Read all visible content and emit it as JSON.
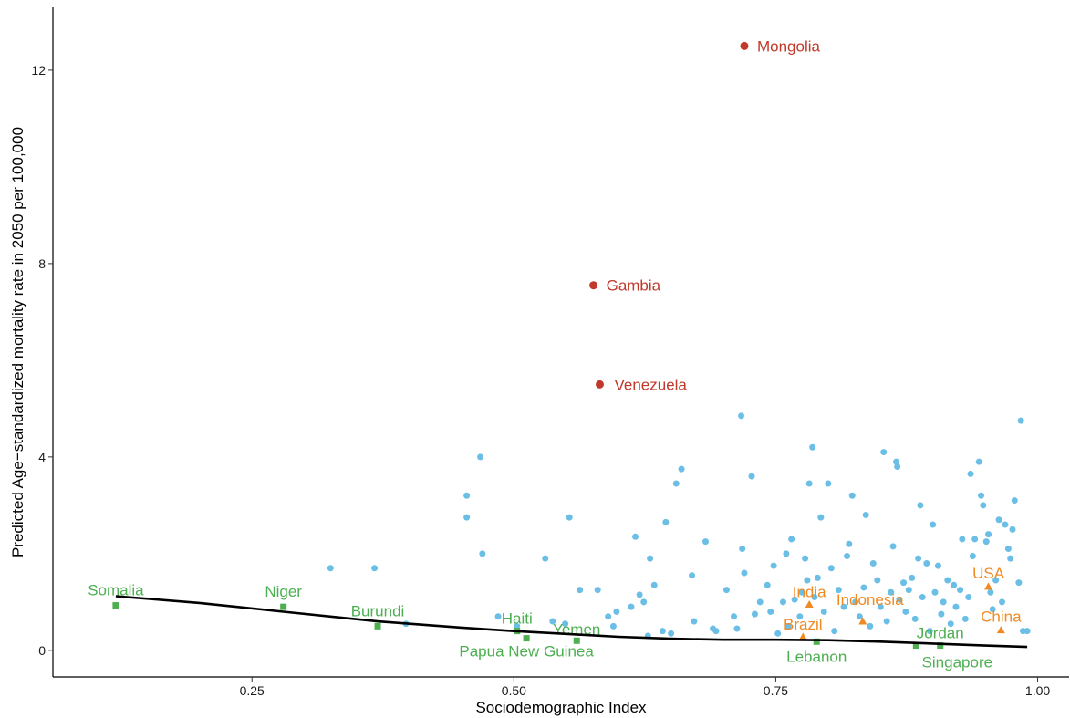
{
  "chart_data": {
    "type": "scatter",
    "title": "",
    "xlabel": "Sociodemographic Index",
    "ylabel": "Predicted Age−standardized mortality rate in 2050 per 100,000",
    "xlim": [
      0.06,
      1.03
    ],
    "ylim": [
      -0.55,
      13.3
    ],
    "x_ticks": [
      0.25,
      0.5,
      0.75,
      1.0
    ],
    "x_tick_labels": [
      "0.25",
      "0.50",
      "0.75",
      "1.00"
    ],
    "y_ticks": [
      0,
      4,
      8,
      12
    ],
    "y_tick_labels": [
      "0",
      "4",
      "8",
      "12"
    ],
    "grid": false,
    "legend": "none",
    "colors": {
      "other": "#6bbfe6",
      "high": "#c0392b",
      "low": "#4caf50",
      "major": "#f08a24",
      "trend": "#000000"
    },
    "series": [
      {
        "group": "other",
        "marker": "circle",
        "points": [
          [
            0.325,
            1.7
          ],
          [
            0.367,
            1.7
          ],
          [
            0.397,
            0.55
          ],
          [
            0.455,
            3.2
          ],
          [
            0.455,
            2.75
          ],
          [
            0.468,
            4.0
          ],
          [
            0.47,
            2.0
          ],
          [
            0.485,
            0.7
          ],
          [
            0.503,
            0.5
          ],
          [
            0.53,
            1.9
          ],
          [
            0.537,
            0.6
          ],
          [
            0.549,
            0.55
          ],
          [
            0.553,
            2.75
          ],
          [
            0.563,
            1.25
          ],
          [
            0.58,
            1.25
          ],
          [
            0.59,
            0.7
          ],
          [
            0.595,
            0.5
          ],
          [
            0.598,
            0.8
          ],
          [
            0.612,
            0.9
          ],
          [
            0.616,
            2.35
          ],
          [
            0.62,
            1.15
          ],
          [
            0.624,
            1.0
          ],
          [
            0.628,
            0.3
          ],
          [
            0.63,
            1.9
          ],
          [
            0.634,
            1.35
          ],
          [
            0.642,
            0.4
          ],
          [
            0.645,
            2.65
          ],
          [
            0.65,
            0.35
          ],
          [
            0.655,
            3.45
          ],
          [
            0.66,
            3.75
          ],
          [
            0.67,
            1.55
          ],
          [
            0.672,
            0.6
          ],
          [
            0.683,
            2.25
          ],
          [
            0.69,
            0.45
          ],
          [
            0.693,
            0.4
          ],
          [
            0.703,
            1.25
          ],
          [
            0.71,
            0.7
          ],
          [
            0.713,
            0.45
          ],
          [
            0.717,
            4.85
          ],
          [
            0.718,
            2.1
          ],
          [
            0.72,
            1.6
          ],
          [
            0.727,
            3.6
          ],
          [
            0.73,
            0.75
          ],
          [
            0.735,
            1.0
          ],
          [
            0.742,
            1.35
          ],
          [
            0.745,
            0.8
          ],
          [
            0.748,
            1.75
          ],
          [
            0.752,
            0.35
          ],
          [
            0.757,
            1.0
          ],
          [
            0.76,
            2.0
          ],
          [
            0.762,
            0.5
          ],
          [
            0.765,
            2.3
          ],
          [
            0.768,
            1.05
          ],
          [
            0.773,
            0.7
          ],
          [
            0.775,
            1.2
          ],
          [
            0.778,
            1.9
          ],
          [
            0.78,
            1.45
          ],
          [
            0.782,
            3.45
          ],
          [
            0.785,
            4.2
          ],
          [
            0.787,
            1.1
          ],
          [
            0.79,
            1.5
          ],
          [
            0.793,
            2.75
          ],
          [
            0.796,
            0.8
          ],
          [
            0.8,
            3.45
          ],
          [
            0.803,
            1.7
          ],
          [
            0.806,
            0.4
          ],
          [
            0.81,
            1.25
          ],
          [
            0.815,
            0.9
          ],
          [
            0.818,
            1.95
          ],
          [
            0.82,
            2.2
          ],
          [
            0.823,
            3.2
          ],
          [
            0.826,
            1.0
          ],
          [
            0.83,
            0.7
          ],
          [
            0.834,
            1.3
          ],
          [
            0.836,
            2.8
          ],
          [
            0.84,
            0.5
          ],
          [
            0.843,
            1.8
          ],
          [
            0.847,
            1.45
          ],
          [
            0.85,
            0.9
          ],
          [
            0.853,
            4.1
          ],
          [
            0.856,
            0.6
          ],
          [
            0.86,
            1.2
          ],
          [
            0.862,
            2.15
          ],
          [
            0.865,
            3.9
          ],
          [
            0.866,
            3.8
          ],
          [
            0.868,
            1.05
          ],
          [
            0.872,
            1.4
          ],
          [
            0.874,
            0.8
          ],
          [
            0.877,
            1.25
          ],
          [
            0.88,
            1.5
          ],
          [
            0.883,
            0.65
          ],
          [
            0.886,
            1.9
          ],
          [
            0.888,
            3.0
          ],
          [
            0.89,
            1.1
          ],
          [
            0.894,
            1.8
          ],
          [
            0.897,
            0.4
          ],
          [
            0.9,
            2.6
          ],
          [
            0.902,
            1.2
          ],
          [
            0.905,
            1.75
          ],
          [
            0.908,
            0.75
          ],
          [
            0.91,
            1.0
          ],
          [
            0.914,
            1.45
          ],
          [
            0.917,
            0.55
          ],
          [
            0.92,
            1.35
          ],
          [
            0.922,
            0.9
          ],
          [
            0.926,
            1.25
          ],
          [
            0.928,
            2.3
          ],
          [
            0.931,
            0.65
          ],
          [
            0.934,
            1.1
          ],
          [
            0.936,
            3.65
          ],
          [
            0.938,
            1.95
          ],
          [
            0.94,
            2.3
          ],
          [
            0.944,
            3.9
          ],
          [
            0.946,
            3.2
          ],
          [
            0.948,
            3.0
          ],
          [
            0.951,
            2.25
          ],
          [
            0.953,
            2.4
          ],
          [
            0.955,
            1.2
          ],
          [
            0.957,
            0.85
          ],
          [
            0.96,
            1.45
          ],
          [
            0.963,
            2.7
          ],
          [
            0.966,
            1.0
          ],
          [
            0.969,
            2.6
          ],
          [
            0.972,
            2.1
          ],
          [
            0.974,
            1.9
          ],
          [
            0.976,
            2.5
          ],
          [
            0.978,
            3.1
          ],
          [
            0.982,
            1.4
          ],
          [
            0.984,
            4.75
          ],
          [
            0.986,
            0.4
          ],
          [
            0.99,
            0.4
          ]
        ]
      },
      {
        "group": "high",
        "marker": "circle",
        "points": [
          {
            "label": "Mongolia",
            "x": 0.72,
            "y": 12.5
          },
          {
            "label": "Gambia",
            "x": 0.576,
            "y": 7.55
          },
          {
            "label": "Venezuela",
            "x": 0.582,
            "y": 5.5
          }
        ]
      },
      {
        "group": "low",
        "marker": "square",
        "points": [
          {
            "label": "Somalia",
            "x": 0.12,
            "y": 0.93
          },
          {
            "label": "Niger",
            "x": 0.28,
            "y": 0.9
          },
          {
            "label": "Burundi",
            "x": 0.37,
            "y": 0.5
          },
          {
            "label": "Haiti",
            "x": 0.503,
            "y": 0.4
          },
          {
            "label": "Papua New Guinea",
            "x": 0.512,
            "y": 0.25
          },
          {
            "label": "Yemen",
            "x": 0.56,
            "y": 0.2
          },
          {
            "label": "Lebanon",
            "x": 0.789,
            "y": 0.18
          },
          {
            "label": "Jordan",
            "x": 0.907,
            "y": 0.1
          },
          {
            "label": "Singapore",
            "x": 0.884,
            "y": 0.1
          }
        ]
      },
      {
        "group": "major",
        "marker": "triangle",
        "points": [
          {
            "label": "India",
            "x": 0.782,
            "y": 0.95
          },
          {
            "label": "Indonesia",
            "x": 0.833,
            "y": 0.6
          },
          {
            "label": "Brazil",
            "x": 0.776,
            "y": 0.28
          },
          {
            "label": "USA",
            "x": 0.953,
            "y": 1.32
          },
          {
            "label": "China",
            "x": 0.965,
            "y": 0.42
          }
        ]
      }
    ],
    "trend_line": {
      "x": [
        0.12,
        0.2,
        0.28,
        0.37,
        0.45,
        0.5,
        0.55,
        0.6,
        0.65,
        0.7,
        0.75,
        0.8,
        0.85,
        0.9,
        0.95,
        0.99
      ],
      "y": [
        1.12,
        0.98,
        0.8,
        0.6,
        0.47,
        0.4,
        0.34,
        0.28,
        0.24,
        0.22,
        0.22,
        0.21,
        0.18,
        0.14,
        0.1,
        0.07
      ]
    }
  }
}
